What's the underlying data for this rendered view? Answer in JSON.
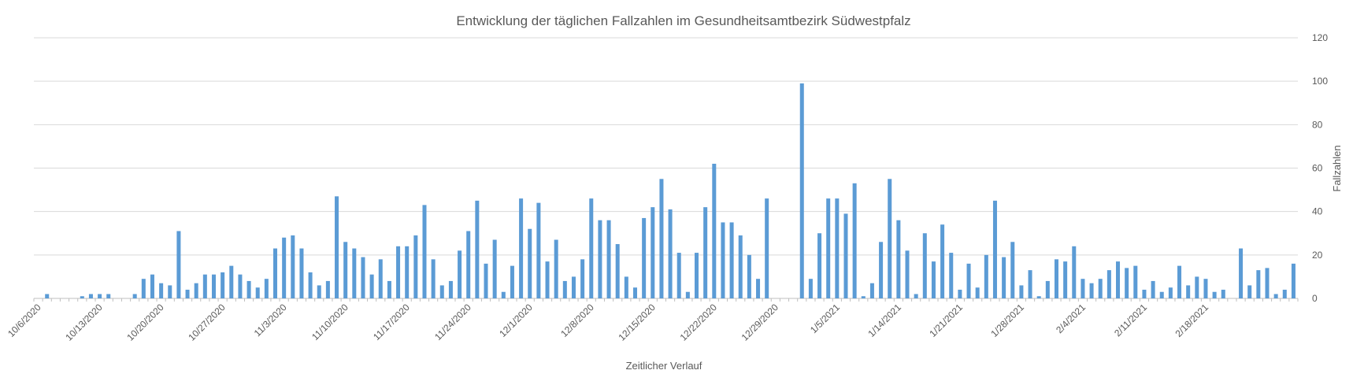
{
  "chart_data": {
    "type": "bar",
    "title": "Entwicklung der täglichen Fallzahlen im Gesundheitsamtbezirk Südwestpfalz",
    "xlabel": "Zeitlicher Verlauf",
    "ylabel": "Fallzahlen",
    "ylim": [
      0,
      120
    ],
    "yticks": [
      0,
      20,
      40,
      60,
      80,
      100,
      120
    ],
    "y_axis_side": "right",
    "grid": true,
    "legend": "none",
    "bar_color": "#5b9bd5",
    "x_start": "2020-10-06",
    "xticks": [
      {
        "label": "10/6/2020",
        "index": 0
      },
      {
        "label": "10/13/2020",
        "index": 7
      },
      {
        "label": "10/20/2020",
        "index": 14
      },
      {
        "label": "10/27/2020",
        "index": 21
      },
      {
        "label": "11/3/2020",
        "index": 28
      },
      {
        "label": "11/10/2020",
        "index": 35
      },
      {
        "label": "11/17/2020",
        "index": 42
      },
      {
        "label": "11/24/2020",
        "index": 49
      },
      {
        "label": "12/1/2020",
        "index": 56
      },
      {
        "label": "12/8/2020",
        "index": 63
      },
      {
        "label": "12/15/2020",
        "index": 70
      },
      {
        "label": "12/22/2020",
        "index": 77
      },
      {
        "label": "12/29/2020",
        "index": 84
      },
      {
        "label": "1/5/2021",
        "index": 91
      },
      {
        "label": "1/14/2021",
        "index": 98
      },
      {
        "label": "1/21/2021",
        "index": 105
      },
      {
        "label": "1/28/2021",
        "index": 112
      },
      {
        "label": "2/4/2021",
        "index": 119
      },
      {
        "label": "2/11/2021",
        "index": 126
      },
      {
        "label": "2/18/2021",
        "index": 133
      }
    ],
    "values": [
      0,
      2,
      0,
      0,
      0,
      1,
      2,
      2,
      2,
      0,
      0,
      2,
      9,
      11,
      7,
      6,
      31,
      4,
      7,
      11,
      11,
      12,
      15,
      11,
      8,
      5,
      9,
      23,
      28,
      29,
      23,
      12,
      6,
      8,
      47,
      26,
      23,
      19,
      11,
      18,
      8,
      24,
      24,
      29,
      43,
      18,
      6,
      8,
      22,
      31,
      45,
      16,
      27,
      3,
      15,
      46,
      32,
      44,
      17,
      27,
      8,
      10,
      18,
      46,
      36,
      36,
      25,
      10,
      5,
      37,
      42,
      55,
      41,
      21,
      3,
      21,
      42,
      62,
      35,
      35,
      29,
      20,
      9,
      46,
      0,
      0,
      0,
      99,
      9,
      30,
      46,
      46,
      39,
      53,
      1,
      7,
      26,
      55,
      36,
      22,
      2,
      30,
      17,
      34,
      21,
      4,
      16,
      5,
      20,
      45,
      19,
      26,
      6,
      13,
      1,
      8,
      18,
      17,
      24,
      9,
      7,
      9,
      13,
      17,
      14,
      15,
      4,
      8,
      3,
      5,
      15,
      6,
      10,
      9,
      3,
      4,
      0,
      23,
      6,
      13,
      14,
      2,
      4,
      16
    ]
  }
}
